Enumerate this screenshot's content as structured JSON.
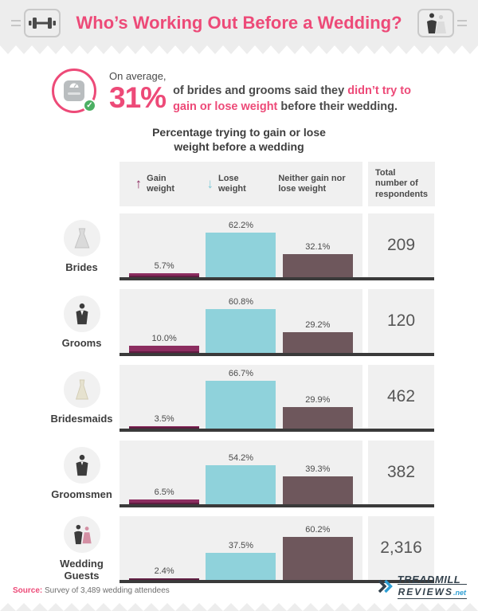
{
  "header": {
    "title": "Who’s Working Out Before a Wedding?"
  },
  "icons": {
    "up_arrow": "↑",
    "down_arrow": "↓",
    "check": "✓"
  },
  "callout": {
    "line1": "On average,",
    "stat": "31%",
    "seg1": "of brides and grooms said they ",
    "highlight": "didn’t try to gain or lose weight",
    "seg2": " before their wedding."
  },
  "chart_data": {
    "type": "bar",
    "title": "Percentage trying to gain or lose weight before a wedding",
    "legend": [
      {
        "label": "Gain weight",
        "arrow": "up",
        "color": "#8c2d60"
      },
      {
        "label": "Lose weight",
        "arrow": "down",
        "color": "#8fd2db"
      },
      {
        "label": "Neither gain nor lose weight",
        "arrow": null,
        "color": "#6e575c"
      }
    ],
    "total_header": "Total number of respondents",
    "ylim": [
      0,
      100
    ],
    "categories": [
      "Brides",
      "Grooms",
      "Bridesmaids",
      "Groomsmen",
      "Wedding Guests"
    ],
    "series": [
      {
        "name": "Gain weight",
        "values": [
          5.7,
          10.0,
          3.5,
          6.5,
          2.4
        ]
      },
      {
        "name": "Lose weight",
        "values": [
          62.2,
          60.8,
          66.7,
          54.2,
          37.5
        ]
      },
      {
        "name": "Neither gain nor lose weight",
        "values": [
          32.1,
          29.2,
          29.9,
          39.3,
          60.2
        ]
      }
    ],
    "totals": [
      209,
      120,
      462,
      382,
      2316
    ],
    "rows": [
      {
        "label": "Brides",
        "gain": 5.7,
        "gain_label": "5.7%",
        "lose": 62.2,
        "lose_label": "62.2%",
        "neither": 32.1,
        "neither_label": "32.1%",
        "total": "209"
      },
      {
        "label": "Grooms",
        "gain": 10.0,
        "gain_label": "10.0%",
        "lose": 60.8,
        "lose_label": "60.8%",
        "neither": 29.2,
        "neither_label": "29.2%",
        "total": "120"
      },
      {
        "label": "Bridesmaids",
        "gain": 3.5,
        "gain_label": "3.5%",
        "lose": 66.7,
        "lose_label": "66.7%",
        "neither": 29.9,
        "neither_label": "29.9%",
        "total": "462"
      },
      {
        "label": "Groomsmen",
        "gain": 6.5,
        "gain_label": "6.5%",
        "lose": 54.2,
        "lose_label": "54.2%",
        "neither": 39.3,
        "neither_label": "39.3%",
        "total": "382"
      },
      {
        "label": "Wedding Guests",
        "gain": 2.4,
        "gain_label": "2.4%",
        "lose": 37.5,
        "lose_label": "37.5%",
        "neither": 60.2,
        "neither_label": "60.2%",
        "total": "2,316"
      }
    ]
  },
  "footer": {
    "source_label": "Source:",
    "source_text": " Survey of 3,489 wedding attendees",
    "brand_top": "TREADMILL",
    "brand_bottom": "REVIEWS",
    "brand_suffix": ".net"
  },
  "colors": {
    "accent_pink": "#ed4a78",
    "gain": "#8c2d60",
    "lose": "#8fd2db",
    "neither": "#6e575c",
    "panel": "#f0f0f0"
  }
}
